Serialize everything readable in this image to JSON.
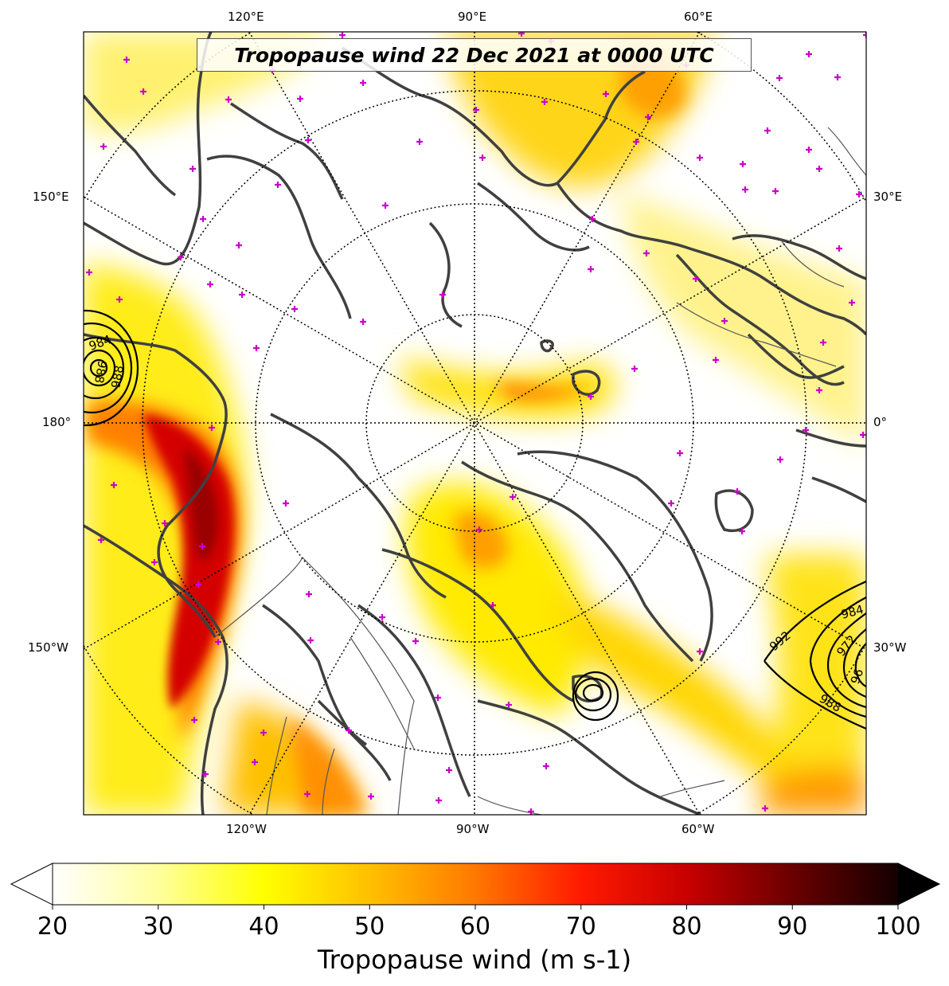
{
  "map": {
    "title": "Tropopause wind 22 Dec 2021 at 0000 UTC",
    "projection": "north-polar-stereographic",
    "longitude_labels_top": [
      "120°E",
      "90°E",
      "60°E"
    ],
    "longitude_labels_bottom": [
      "120°W",
      "90°W",
      "60°W"
    ],
    "longitude_labels_left": [
      "150°E",
      "180°",
      "150°W"
    ],
    "longitude_labels_right": [
      "30°E",
      "0°",
      "30°W"
    ],
    "pressure_contours": [
      "984",
      "988",
      "988",
      "984",
      "992",
      "972",
      "988",
      "96"
    ],
    "colors": {
      "coastline": "#404040",
      "graticule": "#000000",
      "station_marker": "#cc00cc",
      "pressure_contour": "#000000"
    }
  },
  "colorbar": {
    "title": "Tropopause wind (m s-1)",
    "ticks": [
      "20",
      "30",
      "40",
      "50",
      "60",
      "70",
      "80",
      "90",
      "100"
    ],
    "min": 20,
    "max": 100,
    "extend": "both",
    "colormap": "hot_r"
  }
}
